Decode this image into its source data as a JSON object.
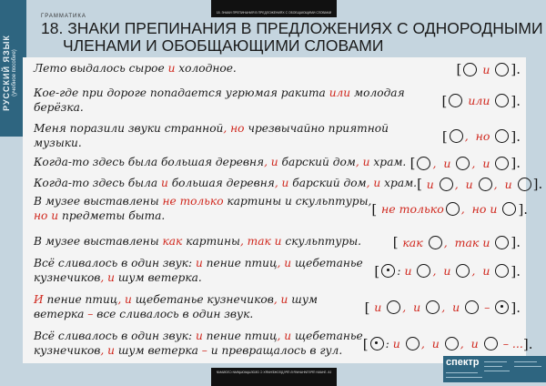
{
  "sidebar": {
    "subject": "РУССКИЙ ЯЗЫК",
    "subtitle": "(учебное пособие)"
  },
  "top_label": "18. ЗНАКИ ПРЕПИНАНИЯ В ПРЕДЛОЖЕНИЯХ С ОБОБЩАЮЩИМИ СЛОВАМИ",
  "bottom_label": "18. ЗНАКИ ПРЕПИНАНИЯ В ПРЕДЛОЖЕНИЯХ С ОБОБЩАЮЩИМИ СЛОВАМИ",
  "header": {
    "section": "ГРАММАТИКА",
    "title_line1": "18. ЗНАКИ ПРЕПИНАНИЯ В ПРЕДЛОЖЕНИЯХ С ОДНОРОДНЫМИ",
    "title_line2": "ЧЛЕНАМИ И ОБОБЩАЮЩИМИ СЛОВАМИ"
  },
  "colors": {
    "accent_red": "#d0271d",
    "sidebar": "#2e6580",
    "background": "#c5d5df"
  },
  "logo": {
    "brand": "спектр"
  },
  "rows": [
    {
      "sentence": [
        {
          "t": "Лето выдалось сырое "
        },
        {
          "t": "и",
          "red": true
        },
        {
          "t": " холодное."
        }
      ],
      "scheme": [
        {
          "t": "["
        },
        {
          "c": "o"
        },
        {
          "t": " и ",
          "red": true
        },
        {
          "c": "o"
        },
        {
          "t": "]."
        }
      ]
    },
    {
      "sentence": [
        {
          "t": "Кое-где  при дороге попадается  угрюмая ракита "
        },
        {
          "t": "или",
          "red": true
        },
        {
          "t": " молодая"
        },
        {
          "br": true
        },
        {
          "t": "берёзка."
        }
      ],
      "scheme": [
        {
          "t": "["
        },
        {
          "c": "o"
        },
        {
          "t": " или ",
          "red": true
        },
        {
          "c": "o"
        },
        {
          "t": "]."
        }
      ]
    },
    {
      "sentence": [
        {
          "t": "Меня поразили звуки странной"
        },
        {
          "t": ", но",
          "red": true
        },
        {
          "t": " чрезвычайно приятной"
        },
        {
          "br": true
        },
        {
          "t": "музыки."
        }
      ],
      "scheme": [
        {
          "t": "["
        },
        {
          "c": "o"
        },
        {
          "t": ",  но ",
          "red": true
        },
        {
          "c": "o"
        },
        {
          "t": "]."
        }
      ]
    },
    {
      "sentence": [
        {
          "t": "Когда-то здесь была  большая деревня"
        },
        {
          "t": ", и",
          "red": true
        },
        {
          "t": " барский дом"
        },
        {
          "t": ", и",
          "red": true
        },
        {
          "t": " храм."
        }
      ],
      "scheme": [
        {
          "t": "["
        },
        {
          "c": "o"
        },
        {
          "t": ",  и ",
          "red": true
        },
        {
          "c": "o"
        },
        {
          "t": ",  и ",
          "red": true
        },
        {
          "c": "o"
        },
        {
          "t": "]."
        }
      ]
    },
    {
      "sentence": [
        {
          "t": "Когда-то здесь была "
        },
        {
          "t": "и",
          "red": true
        },
        {
          "t": " большая деревня"
        },
        {
          "t": ", и",
          "red": true
        },
        {
          "t": " барский дом"
        },
        {
          "t": ", и",
          "red": true
        },
        {
          "t": "  храм."
        }
      ],
      "scheme": [
        {
          "t": "[ "
        },
        {
          "t": "и ",
          "red": true
        },
        {
          "c": "o"
        },
        {
          "t": ",  и ",
          "red": true
        },
        {
          "c": "o"
        },
        {
          "t": ",  и ",
          "red": true
        },
        {
          "c": "o"
        },
        {
          "t": "]."
        }
      ]
    },
    {
      "sentence": [
        {
          "t": "В музее выставлены "
        },
        {
          "t": "не только",
          "red": true
        },
        {
          "t": " картины и скульптуры,"
        },
        {
          "br": true
        },
        {
          "t": "но и",
          "red": true
        },
        {
          "t": " предметы быта."
        }
      ],
      "scheme": [
        {
          "t": "[ "
        },
        {
          "t": "не только",
          "red": true
        },
        {
          "c": "o"
        },
        {
          "t": ",  но и ",
          "red": true
        },
        {
          "c": "o"
        },
        {
          "t": "]."
        }
      ]
    },
    {
      "sentence": [
        {
          "t": "В музее выставлены "
        },
        {
          "t": "как",
          "red": true
        },
        {
          "t": " картины"
        },
        {
          "t": ", так и",
          "red": true
        },
        {
          "t": " скульптуры."
        }
      ],
      "scheme": [
        {
          "t": "[ "
        },
        {
          "t": "как ",
          "red": true
        },
        {
          "c": "o"
        },
        {
          "t": ",  так и ",
          "red": true
        },
        {
          "c": "o"
        },
        {
          "t": "]."
        }
      ]
    },
    {
      "sentence": [
        {
          "t": "Всё сливалось в  один звук: "
        },
        {
          "t": "и",
          "red": true
        },
        {
          "t": " пение птиц"
        },
        {
          "t": ", и",
          "red": true
        },
        {
          "t": " щебетанье"
        },
        {
          "br": true
        },
        {
          "t": "кузнечиков"
        },
        {
          "t": ", и",
          "red": true
        },
        {
          "t": " шум ветерка."
        }
      ],
      "scheme": [
        {
          "t": "["
        },
        {
          "c": "dot"
        },
        {
          "t": ": "
        },
        {
          "t": "и ",
          "red": true
        },
        {
          "c": "o"
        },
        {
          "t": ",  и ",
          "red": true
        },
        {
          "c": "o"
        },
        {
          "t": ",  и ",
          "red": true
        },
        {
          "c": "o"
        },
        {
          "t": "]."
        }
      ]
    },
    {
      "sentence": [
        {
          "t": "И",
          "red": true
        },
        {
          "t": " пение птиц"
        },
        {
          "t": ", и",
          "red": true
        },
        {
          "t": " щебетанье кузнечиков"
        },
        {
          "t": ", и",
          "red": true
        },
        {
          "t": " шум"
        },
        {
          "br": true
        },
        {
          "t": "ветерка "
        },
        {
          "t": "–",
          "red": true
        },
        {
          "t": " все сливалось в один звук."
        }
      ],
      "scheme": [
        {
          "t": "[ "
        },
        {
          "t": "и ",
          "red": true
        },
        {
          "c": "o"
        },
        {
          "t": ",  и ",
          "red": true
        },
        {
          "c": "o"
        },
        {
          "t": ",  и ",
          "red": true
        },
        {
          "c": "o"
        },
        {
          "t": " – ",
          "red": true
        },
        {
          "c": "dot"
        },
        {
          "t": "]."
        }
      ]
    },
    {
      "sentence": [
        {
          "t": "Всё сливалось в  один звук: "
        },
        {
          "t": "и",
          "red": true
        },
        {
          "t": " пение птиц"
        },
        {
          "t": ", и",
          "red": true
        },
        {
          "t": " щебетанье"
        },
        {
          "br": true
        },
        {
          "t": "кузнечиков"
        },
        {
          "t": ", и",
          "red": true
        },
        {
          "t": " шум ветерка "
        },
        {
          "t": "–",
          "red": true
        },
        {
          "t": " и превращалось в гул."
        }
      ],
      "scheme": [
        {
          "t": "["
        },
        {
          "c": "dot"
        },
        {
          "t": ": "
        },
        {
          "t": "и ",
          "red": true
        },
        {
          "c": "o"
        },
        {
          "t": ",  и ",
          "red": true
        },
        {
          "c": "o"
        },
        {
          "t": ",  и ",
          "red": true
        },
        {
          "c": "o"
        },
        {
          "t": " – ...",
          "red": true
        },
        {
          "t": "]."
        }
      ]
    }
  ]
}
